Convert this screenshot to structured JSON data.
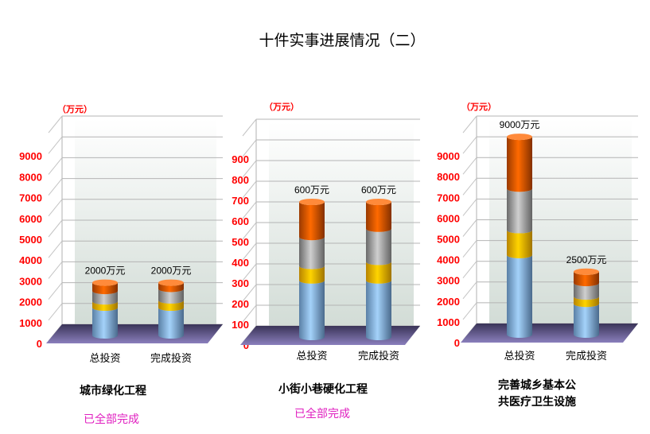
{
  "title": "十件实事进展情况（二）",
  "colors": {
    "axis_label": "#ff0000",
    "status": "#e020c0",
    "segments": [
      "#8fc3f0",
      "#ffcc00",
      "#b8b8b8",
      "#ff6600"
    ],
    "floor": "#7a6fa8"
  },
  "chart_data": [
    {
      "type": "bar",
      "subtype": "stacked-3d-cylinder",
      "unit_label": "（万元）",
      "caption": [
        "城市绿化工程"
      ],
      "status": "已全部完成",
      "yticks": [
        "0",
        "1000",
        "2000",
        "3000",
        "4000",
        "5000",
        "6000",
        "7000",
        "8000",
        "9000"
      ],
      "ylim": [
        0,
        10000
      ],
      "categories": [
        "总投资",
        "完成投资"
      ],
      "bars": [
        {
          "label": "2000万元",
          "total": 2000,
          "segments": [
            800,
            300,
            500,
            400
          ]
        },
        {
          "label": "2000万元",
          "total": 2000,
          "segments": [
            800,
            350,
            550,
            300
          ]
        }
      ]
    },
    {
      "type": "bar",
      "subtype": "stacked-3d-cylinder",
      "unit_label": "（万元）",
      "caption": [
        "小街小巷硬化工程"
      ],
      "status": "已全部完成",
      "yticks": [
        "0",
        "100",
        "200",
        "300",
        "400",
        "500",
        "600",
        "700",
        "800",
        "900"
      ],
      "ylim": [
        0,
        1000
      ],
      "categories": [
        "总投资",
        "完成投资"
      ],
      "bars": [
        {
          "label": "600万元",
          "total": 600,
          "segments": [
            220,
            70,
            140,
            170
          ]
        },
        {
          "label": "600万元",
          "total": 600,
          "segments": [
            220,
            90,
            160,
            130
          ]
        }
      ]
    },
    {
      "type": "bar",
      "subtype": "stacked-3d-cylinder",
      "unit_label": "（万元）",
      "caption": [
        "完善城乡基本公",
        "共医疗卫生设施"
      ],
      "status": "",
      "yticks": [
        "0",
        "1000",
        "2000",
        "3000",
        "4000",
        "5000",
        "6000",
        "7000",
        "8000",
        "9000"
      ],
      "ylim": [
        0,
        10000
      ],
      "categories": [
        "总投资",
        "完成投资"
      ],
      "bars": [
        {
          "label": "9000万元",
          "total": 9000,
          "segments": [
            3300,
            1200,
            2000,
            2500
          ]
        },
        {
          "label": "2500万元",
          "total": 2500,
          "segments": [
            950,
            350,
            650,
            550
          ]
        }
      ]
    }
  ]
}
